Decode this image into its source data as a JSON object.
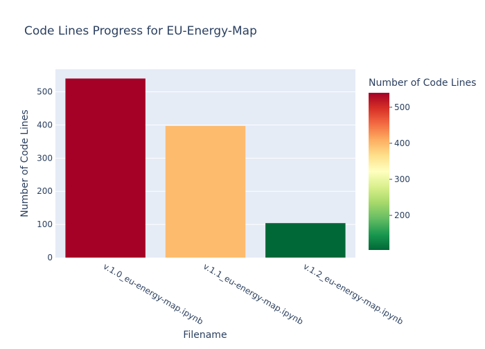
{
  "chart_data": {
    "type": "bar",
    "title": "Code Lines Progress for EU-Energy-Map",
    "xlabel": "Filename",
    "ylabel": "Number of Code Lines",
    "categories": [
      "v.1.0_eu-energy-map.ipynb",
      "v.1.1_eu-energy-map.ipynb",
      "v.1.2_eu-energy-map.ipynb"
    ],
    "values": [
      540,
      397,
      104
    ],
    "ylim": [
      0,
      568
    ],
    "yticks": [
      0,
      100,
      200,
      300,
      400,
      500
    ],
    "grid": true,
    "colorbar": {
      "title": "Number of Code Lines",
      "colorscale": "RdYlGn (reversed)",
      "range": [
        104,
        540
      ],
      "ticks": [
        200,
        300,
        400,
        500
      ],
      "colors": [
        "#006837",
        "#1a9850",
        "#66bd63",
        "#a6d96a",
        "#d9ef8b",
        "#ffffbf",
        "#fee08b",
        "#fdae61",
        "#f46d43",
        "#d73027",
        "#a50026"
      ]
    },
    "colors": {
      "plot_background": "#e5ecf6",
      "gridline": "#ffffff",
      "text": "#2a3f5f"
    }
  }
}
